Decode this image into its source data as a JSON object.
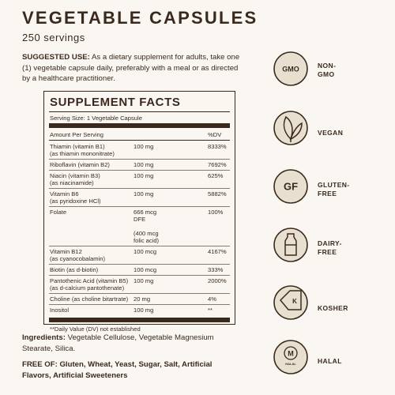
{
  "header": {
    "title": "VEGETABLE CAPSULES",
    "servings": "250 servings"
  },
  "suggested_use": {
    "label": "SUGGESTED USE:",
    "text": "As a dietary supplement for adults, take one (1) vegetable capsule daily, preferably with a meal or as directed by a healthcare practitioner."
  },
  "supplement_facts": {
    "title": "SUPPLEMENT FACTS",
    "serving_size": "Serving Size: 1 Vegetable Capsule",
    "column_headers": [
      "Amount Per Serving",
      "%DV"
    ],
    "rows": [
      {
        "name": [
          "Thiamin (vitamin B1)",
          "(as thiamin mononitrate)"
        ],
        "amount": [
          "100 mg"
        ],
        "dv": "8333%"
      },
      {
        "name": [
          "Riboflavin (vitamin B2)"
        ],
        "amount": [
          "100 mg"
        ],
        "dv": "7692%"
      },
      {
        "name": [
          "Niacin (vitamin B3)",
          "(as niacinamide)"
        ],
        "amount": [
          "100 mg"
        ],
        "dv": "625%"
      },
      {
        "name": [
          "Vitamin B6",
          "(as pyridoxine HCl)"
        ],
        "amount": [
          "100 mg"
        ],
        "dv": "5882%"
      },
      {
        "name": [
          "Folate"
        ],
        "amount": [
          "666 mcg",
          "DFE"
        ],
        "note": [
          "(400 mcg",
          "folic acid)"
        ],
        "dv": "100%"
      },
      {
        "name": [
          "Vitamin B12",
          "(as cyanocobalamin)"
        ],
        "amount": [
          "100 mcg"
        ],
        "dv": "4167%"
      },
      {
        "name": [
          "Biotin (as d-biotin)"
        ],
        "amount": [
          "100 mcg"
        ],
        "dv": "333%"
      },
      {
        "name": [
          "Pantothenic Acid (vitamin B5)",
          "(as d-calcium pantothenate)"
        ],
        "amount": [
          "100 mg"
        ],
        "dv": "2000%"
      },
      {
        "name": [
          "Choline (as choline bitartrate)"
        ],
        "amount": [
          "20 mg"
        ],
        "dv": "4%"
      },
      {
        "name": [
          "Inositol"
        ],
        "amount": [
          "100 mg"
        ],
        "dv": "**"
      }
    ],
    "footnote": "**Daily Value (DV) not established"
  },
  "ingredients": {
    "label": "Ingredients:",
    "text": "Vegetable Cellulose, Vegetable Magnesium Stearate, Silica."
  },
  "free_of": {
    "label": "FREE OF:",
    "text": "Gluten, Wheat, Yeast, Sugar, Salt, Artificial Flavors, Artificial Sweeteners"
  },
  "badges": [
    {
      "icon_text": "GMO",
      "label": [
        "NON-",
        "GMO"
      ]
    },
    {
      "label": [
        "VEGAN"
      ]
    },
    {
      "icon_text": "GF",
      "label": [
        "GLUTEN-",
        "FREE"
      ]
    },
    {
      "label": [
        "DAIRY-",
        "FREE"
      ]
    },
    {
      "icon_text": "K",
      "label": [
        "KOSHER"
      ]
    },
    {
      "icon_text": "M",
      "icon_subtext": "HALAL",
      "label": [
        "HALAL"
      ]
    }
  ]
}
